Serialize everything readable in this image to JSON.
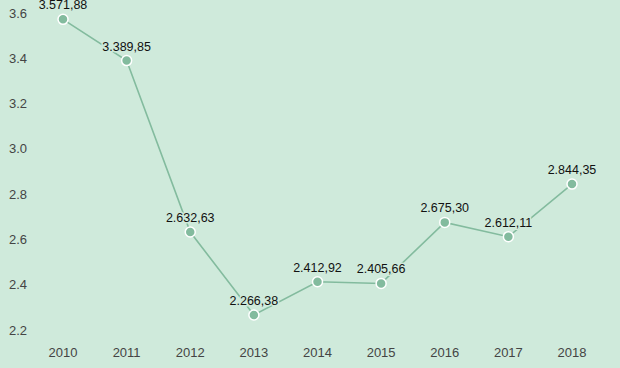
{
  "chart_data": {
    "type": "line",
    "categories": [
      "2010",
      "2011",
      "2012",
      "2013",
      "2014",
      "2015",
      "2016",
      "2017",
      "2018"
    ],
    "values": [
      3.57188,
      3.38985,
      2.63263,
      2.26638,
      2.41292,
      2.40566,
      2.6753,
      2.61211,
      2.84435
    ],
    "value_labels": [
      "3.571,88",
      "3.389,85",
      "2.632,63",
      "2.266,38",
      "2.412,92",
      "2.405,66",
      "2.675,30",
      "2.612,11",
      "2.844,35"
    ],
    "color": "#83bb9e",
    "marker": "circle",
    "data_labels": true,
    "grid": false,
    "ylim": [
      2.2,
      3.6
    ],
    "yticks": [
      2.2,
      2.4,
      2.6,
      2.8,
      {
        "value": 3,
        "label": "3.0"
      },
      3.2,
      3.4,
      3.6
    ]
  }
}
